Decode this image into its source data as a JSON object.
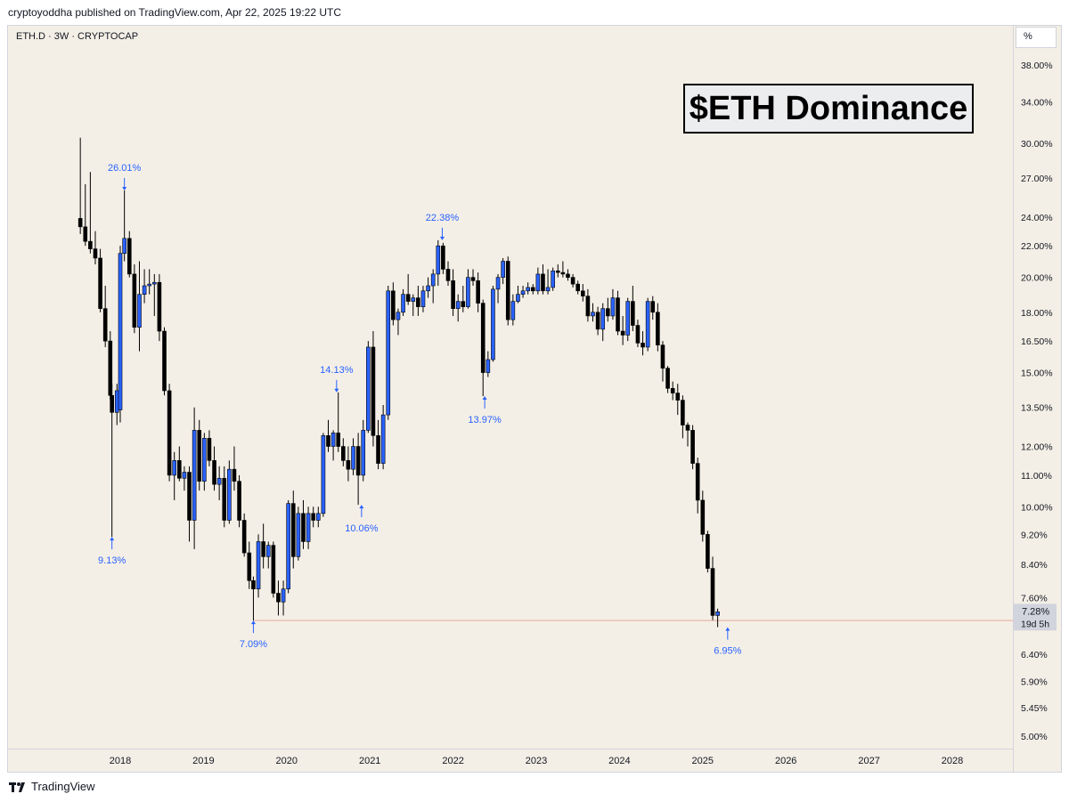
{
  "header": {
    "published": "cryptoyoddha published on TradingView.com, Apr 22, 2025 19:22 UTC"
  },
  "symbol": "ETH.D · 3W · CRYPTOCAP",
  "scale_unit": "%",
  "footer": {
    "brand": "TradingView"
  },
  "colors": {
    "up": "#2962ff",
    "down": "#000000",
    "annotation": "#2962ff",
    "background": "#f4efe6",
    "support_line": "#e8a79a"
  },
  "chart_data": {
    "type": "candlestick",
    "title": "$ETH Dominance",
    "y_scale": "log",
    "ylim": [
      4.85,
      40.8
    ],
    "y_ticks": [
      "38.00%",
      "34.00%",
      "30.00%",
      "27.00%",
      "24.00%",
      "22.00%",
      "20.00%",
      "18.00%",
      "16.50%",
      "15.00%",
      "13.50%",
      "12.00%",
      "11.00%",
      "10.00%",
      "9.20%",
      "8.40%",
      "7.60%",
      "6.40%",
      "5.90%",
      "5.45%",
      "5.00%"
    ],
    "x_ticks": [
      "2018",
      "2019",
      "2020",
      "2021",
      "2022",
      "2023",
      "2024",
      "2025",
      "2026",
      "2027",
      "2028"
    ],
    "x_tick_values": [
      2018,
      2019,
      2020,
      2021,
      2022,
      2023,
      2024,
      2025,
      2026,
      2027,
      2028
    ],
    "current": {
      "price": "7.28%",
      "countdown": "19d 5h"
    },
    "support_level": 7.09,
    "annotations": [
      {
        "label": "26.01%",
        "x": 2018.05,
        "value": 26.01,
        "position": "above"
      },
      {
        "label": "9.13%",
        "x": 2017.9,
        "value": 9.13,
        "position": "below"
      },
      {
        "label": "7.09%",
        "x": 2019.6,
        "value": 7.09,
        "position": "below"
      },
      {
        "label": "14.13%",
        "x": 2020.6,
        "value": 14.13,
        "position": "above"
      },
      {
        "label": "10.06%",
        "x": 2020.9,
        "value": 10.06,
        "position": "below"
      },
      {
        "label": "22.38%",
        "x": 2021.87,
        "value": 22.38,
        "position": "above"
      },
      {
        "label": "13.97%",
        "x": 2022.38,
        "value": 13.97,
        "position": "below"
      },
      {
        "label": "6.95%",
        "x": 2025.3,
        "value": 6.95,
        "position": "below"
      }
    ],
    "candles": [
      [
        2017.52,
        23.9,
        30.5,
        22.8,
        23.3
      ],
      [
        2017.58,
        23.3,
        26.5,
        22.0,
        22.3
      ],
      [
        2017.64,
        22.3,
        27.5,
        21.5,
        21.8
      ],
      [
        2017.7,
        21.8,
        23.0,
        20.8,
        21.2
      ],
      [
        2017.76,
        21.2,
        21.8,
        18.0,
        18.2
      ],
      [
        2017.82,
        18.2,
        19.5,
        16.2,
        16.5
      ],
      [
        2017.88,
        16.5,
        17.0,
        13.8,
        14.0
      ],
      [
        2017.9,
        14.0,
        14.5,
        9.13,
        13.3
      ],
      [
        2017.96,
        13.3,
        14.5,
        12.8,
        14.2
      ],
      [
        2018.0,
        13.4,
        22.0,
        12.9,
        21.5
      ],
      [
        2018.05,
        21.5,
        26.01,
        21.0,
        22.5
      ],
      [
        2018.11,
        22.5,
        23.0,
        20.0,
        20.2
      ],
      [
        2018.17,
        20.2,
        20.8,
        16.9,
        17.2
      ],
      [
        2018.23,
        17.2,
        21.0,
        16.0,
        19.0
      ],
      [
        2018.29,
        19.0,
        20.5,
        18.5,
        19.5
      ],
      [
        2018.35,
        19.5,
        20.5,
        19.0,
        19.6
      ],
      [
        2018.41,
        19.6,
        20.2,
        17.8,
        19.7
      ],
      [
        2018.47,
        19.7,
        20.2,
        16.5,
        17.0
      ],
      [
        2018.53,
        17.0,
        17.2,
        14.0,
        14.2
      ],
      [
        2018.59,
        14.2,
        14.5,
        10.8,
        11.0
      ],
      [
        2018.65,
        11.0,
        11.8,
        10.2,
        11.5
      ],
      [
        2018.71,
        11.5,
        12.0,
        10.8,
        10.9
      ],
      [
        2018.77,
        10.9,
        11.3,
        10.5,
        11.1
      ],
      [
        2018.83,
        11.1,
        11.3,
        9.0,
        9.6
      ],
      [
        2018.89,
        9.6,
        13.5,
        8.8,
        12.6
      ],
      [
        2018.95,
        12.6,
        13.0,
        10.5,
        10.8
      ],
      [
        2019.01,
        10.8,
        12.5,
        10.5,
        12.3
      ],
      [
        2019.07,
        12.3,
        12.6,
        11.3,
        11.5
      ],
      [
        2019.13,
        11.5,
        12.0,
        10.5,
        10.7
      ],
      [
        2019.19,
        10.7,
        11.3,
        10.2,
        10.9
      ],
      [
        2019.25,
        10.9,
        11.3,
        9.4,
        9.6
      ],
      [
        2019.31,
        9.6,
        11.5,
        9.5,
        11.2
      ],
      [
        2019.37,
        11.2,
        12.0,
        10.5,
        10.8
      ],
      [
        2019.43,
        10.8,
        11.0,
        9.4,
        9.6
      ],
      [
        2019.49,
        9.6,
        9.8,
        8.6,
        8.7
      ],
      [
        2019.55,
        8.7,
        9.0,
        7.8,
        8.0
      ],
      [
        2019.6,
        8.0,
        8.1,
        7.09,
        7.8
      ],
      [
        2019.66,
        7.8,
        9.2,
        7.6,
        9.0
      ],
      [
        2019.72,
        9.0,
        9.5,
        8.3,
        8.6
      ],
      [
        2019.78,
        8.6,
        9.0,
        8.3,
        8.9
      ],
      [
        2019.84,
        8.9,
        9.0,
        7.6,
        7.7
      ],
      [
        2019.9,
        7.7,
        8.0,
        7.2,
        7.5
      ],
      [
        2019.96,
        7.5,
        8.0,
        7.2,
        7.8
      ],
      [
        2020.02,
        7.8,
        10.2,
        7.7,
        10.1
      ],
      [
        2020.08,
        10.1,
        10.5,
        8.3,
        8.6
      ],
      [
        2020.14,
        8.6,
        10.0,
        8.5,
        9.8
      ],
      [
        2020.2,
        9.8,
        10.2,
        8.8,
        9.0
      ],
      [
        2020.26,
        9.0,
        10.0,
        8.8,
        9.8
      ],
      [
        2020.32,
        9.8,
        10.0,
        9.4,
        9.6
      ],
      [
        2020.38,
        9.6,
        10.0,
        9.4,
        9.8
      ],
      [
        2020.44,
        9.8,
        12.5,
        9.7,
        12.4
      ],
      [
        2020.5,
        12.4,
        13.0,
        11.8,
        12.0
      ],
      [
        2020.56,
        12.0,
        12.6,
        11.5,
        12.5
      ],
      [
        2020.62,
        12.5,
        14.13,
        11.8,
        12.0
      ],
      [
        2020.68,
        12.0,
        12.3,
        11.3,
        11.5
      ],
      [
        2020.74,
        11.5,
        12.0,
        10.8,
        11.2
      ],
      [
        2020.8,
        11.2,
        12.3,
        11.0,
        12.0
      ],
      [
        2020.86,
        12.0,
        12.5,
        10.06,
        11.0
      ],
      [
        2020.92,
        11.0,
        13.0,
        10.8,
        12.6
      ],
      [
        2020.98,
        12.6,
        16.5,
        12.5,
        16.2
      ],
      [
        2021.04,
        16.2,
        17.0,
        12.0,
        12.4
      ],
      [
        2021.1,
        12.4,
        13.0,
        11.2,
        11.4
      ],
      [
        2021.16,
        11.4,
        13.6,
        11.2,
        13.2
      ],
      [
        2021.22,
        13.2,
        19.5,
        13.0,
        19.2
      ],
      [
        2021.28,
        19.2,
        19.7,
        17.3,
        17.6
      ],
      [
        2021.34,
        17.6,
        18.2,
        16.8,
        18.0
      ],
      [
        2021.4,
        18.0,
        19.3,
        17.8,
        19.0
      ],
      [
        2021.46,
        19.0,
        20.2,
        18.4,
        18.6
      ],
      [
        2021.52,
        18.6,
        19.0,
        17.8,
        18.8
      ],
      [
        2021.58,
        18.8,
        19.5,
        17.8,
        18.3
      ],
      [
        2021.64,
        18.3,
        19.5,
        18.0,
        19.2
      ],
      [
        2021.7,
        19.2,
        20.0,
        18.8,
        19.5
      ],
      [
        2021.76,
        19.5,
        20.5,
        18.5,
        20.2
      ],
      [
        2021.82,
        20.2,
        22.38,
        19.5,
        22.0
      ],
      [
        2021.88,
        22.0,
        22.2,
        20.2,
        20.5
      ],
      [
        2021.94,
        20.5,
        21.0,
        19.5,
        19.8
      ],
      [
        2022.0,
        19.8,
        20.5,
        17.8,
        18.2
      ],
      [
        2022.06,
        18.2,
        19.0,
        17.5,
        18.6
      ],
      [
        2022.12,
        18.6,
        19.5,
        18.0,
        18.3
      ],
      [
        2022.18,
        18.3,
        20.5,
        18.2,
        20.0
      ],
      [
        2022.24,
        20.0,
        20.5,
        19.5,
        19.8
      ],
      [
        2022.3,
        19.8,
        20.3,
        18.0,
        18.5
      ],
      [
        2022.36,
        18.5,
        18.7,
        13.97,
        15.0
      ],
      [
        2022.42,
        15.0,
        16.0,
        14.8,
        15.6
      ],
      [
        2022.48,
        15.6,
        19.5,
        15.5,
        19.3
      ],
      [
        2022.54,
        19.3,
        20.2,
        18.5,
        20.0
      ],
      [
        2022.6,
        20.0,
        21.2,
        19.6,
        21.0
      ],
      [
        2022.66,
        21.0,
        21.3,
        17.3,
        17.6
      ],
      [
        2022.72,
        17.6,
        19.0,
        17.3,
        18.6
      ],
      [
        2022.78,
        18.6,
        19.5,
        18.5,
        19.0
      ],
      [
        2022.84,
        19.0,
        19.5,
        18.8,
        19.2
      ],
      [
        2022.9,
        19.2,
        19.7,
        19.0,
        19.4
      ],
      [
        2022.96,
        19.4,
        19.6,
        19.0,
        19.2
      ],
      [
        2023.02,
        19.2,
        20.6,
        19.0,
        20.2
      ],
      [
        2023.08,
        20.2,
        20.8,
        19.0,
        19.2
      ],
      [
        2023.14,
        19.2,
        20.5,
        19.0,
        19.4
      ],
      [
        2023.2,
        19.4,
        20.6,
        19.2,
        20.4
      ],
      [
        2023.26,
        20.4,
        20.8,
        20.0,
        20.3
      ],
      [
        2023.32,
        20.3,
        21.0,
        20.0,
        20.2
      ],
      [
        2023.38,
        20.2,
        20.5,
        19.8,
        20.0
      ],
      [
        2023.44,
        20.0,
        20.2,
        19.4,
        19.6
      ],
      [
        2023.5,
        19.6,
        19.8,
        19.0,
        19.2
      ],
      [
        2023.56,
        19.2,
        19.6,
        18.6,
        18.9
      ],
      [
        2023.62,
        18.9,
        19.3,
        17.5,
        17.8
      ],
      [
        2023.68,
        17.8,
        18.5,
        17.5,
        18.0
      ],
      [
        2023.74,
        18.0,
        18.3,
        16.8,
        17.1
      ],
      [
        2023.8,
        17.1,
        18.5,
        16.5,
        18.2
      ],
      [
        2023.86,
        18.2,
        18.8,
        17.5,
        17.8
      ],
      [
        2023.92,
        17.8,
        19.3,
        17.6,
        18.8
      ],
      [
        2023.98,
        18.8,
        19.2,
        16.8,
        17.0
      ],
      [
        2024.04,
        17.0,
        17.8,
        16.3,
        16.8
      ],
      [
        2024.1,
        16.8,
        18.8,
        16.5,
        18.6
      ],
      [
        2024.16,
        18.6,
        19.5,
        17.0,
        17.3
      ],
      [
        2024.22,
        17.3,
        17.6,
        16.2,
        16.4
      ],
      [
        2024.28,
        16.4,
        17.0,
        15.8,
        16.2
      ],
      [
        2024.34,
        16.2,
        18.8,
        16.0,
        18.6
      ],
      [
        2024.4,
        18.6,
        18.9,
        17.6,
        18.0
      ],
      [
        2024.46,
        18.0,
        18.5,
        16.0,
        16.3
      ],
      [
        2024.52,
        16.3,
        16.5,
        14.6,
        15.2
      ],
      [
        2024.58,
        15.2,
        15.3,
        14.1,
        14.3
      ],
      [
        2024.64,
        14.3,
        14.6,
        13.8,
        14.1
      ],
      [
        2024.7,
        14.1,
        14.5,
        13.2,
        13.8
      ],
      [
        2024.76,
        13.8,
        14.0,
        12.3,
        12.8
      ],
      [
        2024.82,
        12.8,
        12.9,
        12.0,
        12.6
      ],
      [
        2024.88,
        12.6,
        12.8,
        11.2,
        11.4
      ],
      [
        2024.94,
        11.4,
        11.6,
        9.8,
        10.2
      ],
      [
        2025.0,
        10.2,
        10.5,
        9.0,
        9.2
      ],
      [
        2025.06,
        9.2,
        9.3,
        8.2,
        8.3
      ],
      [
        2025.12,
        8.3,
        8.6,
        7.1,
        7.2
      ],
      [
        2025.18,
        7.2,
        7.35,
        6.95,
        7.28
      ]
    ]
  }
}
